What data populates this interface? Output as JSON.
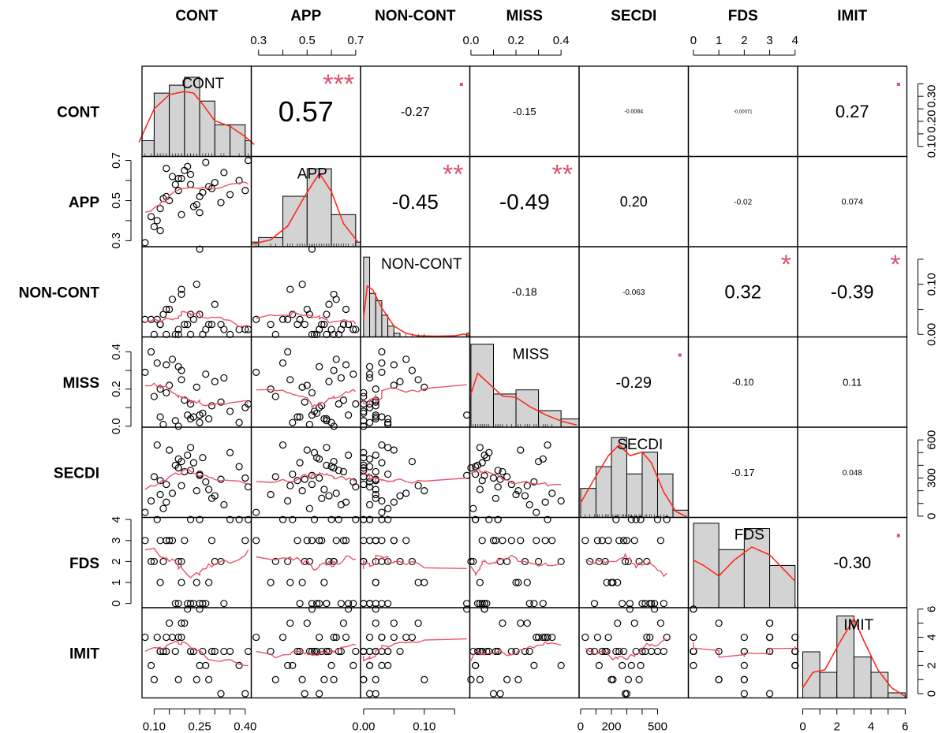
{
  "chart_data": {
    "type": "scatter-matrix",
    "variables": [
      "CONT",
      "APP",
      "NON-CONT",
      "MISS",
      "SECDI",
      "FDS",
      "IMIT"
    ],
    "ranges": [
      [
        0.06,
        0.42
      ],
      [
        0.27,
        0.72
      ],
      [
        -0.005,
        0.175
      ],
      [
        -0.005,
        0.48
      ],
      [
        -10,
        700
      ],
      [
        -0.2,
        4.1
      ],
      [
        -0.3,
        6.1
      ]
    ],
    "top_axis": [
      null,
      {
        "ticks": [
          0.3,
          0.4,
          0.5,
          0.6,
          0.7
        ],
        "labels": [
          "0.3",
          "0.5",
          "0.7"
        ],
        "label_at": [
          0.3,
          0.5,
          0.7
        ]
      },
      null,
      {
        "ticks": [
          0.0,
          0.1,
          0.2,
          0.3,
          0.4
        ],
        "labels": [
          "0.0",
          "0.2",
          "0.4"
        ],
        "label_at": [
          0.0,
          0.2,
          0.4
        ]
      },
      null,
      {
        "ticks": [
          0,
          1,
          2,
          3,
          4
        ],
        "labels": [
          "0",
          "1",
          "2",
          "3",
          "4"
        ],
        "label_at": [
          0,
          1,
          2,
          3,
          4
        ]
      },
      null
    ],
    "bottom_axis": [
      {
        "ticks": [
          0.1,
          0.15,
          0.2,
          0.25,
          0.3,
          0.35,
          0.4
        ],
        "labels": [
          "0.10",
          "0.25",
          "0.40"
        ],
        "label_at": [
          0.1,
          0.25,
          0.4
        ]
      },
      null,
      {
        "ticks": [
          0.0,
          0.05,
          0.1,
          0.15
        ],
        "labels": [
          "0.00",
          "0.10"
        ],
        "label_at": [
          0.0,
          0.1
        ]
      },
      null,
      {
        "ticks": [
          0,
          100,
          200,
          300,
          400,
          500
        ],
        "labels": [
          "0",
          "200",
          "500"
        ],
        "label_at": [
          0,
          200,
          500
        ]
      },
      null,
      {
        "ticks": [
          0,
          1,
          2,
          3,
          4,
          5,
          6
        ],
        "labels": [
          "0",
          "2",
          "4",
          "6"
        ],
        "label_at": [
          0,
          2,
          4,
          6
        ]
      }
    ],
    "left_axis": [
      null,
      {
        "ticks": [
          0.3,
          0.4,
          0.5,
          0.6,
          0.7
        ],
        "labels": [
          "0.3",
          "0.5",
          "0.7"
        ],
        "label_at": [
          0.3,
          0.5,
          0.7
        ]
      },
      null,
      {
        "ticks": [
          0.0,
          0.1,
          0.2,
          0.3,
          0.4
        ],
        "labels": [
          "0.0",
          "0.2",
          "0.4"
        ],
        "label_at": [
          0.0,
          0.2,
          0.4
        ]
      },
      null,
      {
        "ticks": [
          0,
          1,
          2,
          3,
          4
        ],
        "labels": [
          "0",
          "1",
          "2",
          "3",
          "4"
        ],
        "label_at": [
          0,
          1,
          2,
          3,
          4
        ]
      },
      null
    ],
    "right_axis": [
      {
        "ticks": [
          0.1,
          0.15,
          0.2,
          0.25,
          0.3,
          0.35
        ],
        "labels": [
          "0.10",
          "0.20",
          "0.30"
        ],
        "label_at": [
          0.1,
          0.2,
          0.3
        ]
      },
      null,
      {
        "ticks": [
          0.0,
          0.05,
          0.1,
          0.15
        ],
        "labels": [
          "0.00",
          "0.10"
        ],
        "label_at": [
          0.0,
          0.1
        ]
      },
      null,
      {
        "ticks": [
          0,
          100,
          200,
          300,
          400,
          500,
          600
        ],
        "labels": [
          "0",
          "300",
          "600"
        ],
        "label_at": [
          0,
          300,
          600
        ]
      },
      null,
      {
        "ticks": [
          0,
          1,
          2,
          3,
          4,
          5,
          6
        ],
        "labels": [
          "0",
          "2",
          "4",
          "6"
        ],
        "label_at": [
          0,
          2,
          4,
          6
        ]
      }
    ],
    "correlations": [
      {
        "row": 0,
        "col": 1,
        "text": "0.57",
        "stars": "***",
        "size": 36
      },
      {
        "row": 0,
        "col": 2,
        "text": "-0.27",
        "stars": "▪",
        "size": 16
      },
      {
        "row": 0,
        "col": 3,
        "text": "-0.15",
        "stars": "",
        "size": 13
      },
      {
        "row": 0,
        "col": 4,
        "text": "-0.0084",
        "stars": "",
        "size": 7
      },
      {
        "row": 0,
        "col": 5,
        "text": "-0.00071",
        "stars": "",
        "size": 6
      },
      {
        "row": 0,
        "col": 6,
        "text": "0.27",
        "stars": "▪",
        "size": 22
      },
      {
        "row": 1,
        "col": 2,
        "text": "-0.45",
        "stars": "**",
        "size": 26
      },
      {
        "row": 1,
        "col": 3,
        "text": "-0.49",
        "stars": "**",
        "size": 28
      },
      {
        "row": 1,
        "col": 4,
        "text": "0.20",
        "stars": "",
        "size": 18
      },
      {
        "row": 1,
        "col": 5,
        "text": "-0.02",
        "stars": "",
        "size": 10
      },
      {
        "row": 1,
        "col": 6,
        "text": "0.074",
        "stars": "",
        "size": 11
      },
      {
        "row": 2,
        "col": 3,
        "text": "-0.18",
        "stars": "",
        "size": 14
      },
      {
        "row": 2,
        "col": 4,
        "text": "-0.063",
        "stars": "",
        "size": 10
      },
      {
        "row": 2,
        "col": 5,
        "text": "0.32",
        "stars": "*",
        "size": 24
      },
      {
        "row": 2,
        "col": 6,
        "text": "-0.39",
        "stars": "*",
        "size": 24
      },
      {
        "row": 3,
        "col": 4,
        "text": "-0.29",
        "stars": "▪",
        "size": 20
      },
      {
        "row": 3,
        "col": 5,
        "text": "-0.10",
        "stars": "",
        "size": 12
      },
      {
        "row": 3,
        "col": 6,
        "text": "0.11",
        "stars": "",
        "size": 13
      },
      {
        "row": 4,
        "col": 5,
        "text": "-0.17",
        "stars": "",
        "size": 13
      },
      {
        "row": 4,
        "col": 6,
        "text": "0.048",
        "stars": "",
        "size": 10
      },
      {
        "row": 5,
        "col": 6,
        "text": "-0.30",
        "stars": "▪",
        "size": 21
      }
    ],
    "histograms": [
      {
        "breaks": [
          0.05,
          0.1,
          0.15,
          0.2,
          0.25,
          0.3,
          0.35,
          0.4,
          0.45
        ],
        "counts": [
          2,
          8,
          9,
          10,
          7,
          4,
          4,
          2
        ],
        "ymax": 11,
        "density": [
          [
            0.05,
            1.8
          ],
          [
            0.1,
            6.0
          ],
          [
            0.15,
            7.8
          ],
          [
            0.2,
            8.2
          ],
          [
            0.23,
            8.0
          ],
          [
            0.26,
            6.6
          ],
          [
            0.3,
            4.5
          ],
          [
            0.35,
            3.8
          ],
          [
            0.4,
            2.5
          ],
          [
            0.43,
            1.5
          ]
        ]
      },
      {
        "breaks": [
          0.2,
          0.3,
          0.4,
          0.5,
          0.6,
          0.7,
          0.8
        ],
        "counts": [
          1,
          2,
          11,
          17,
          7,
          1
        ],
        "ymax": 19,
        "density": [
          [
            0.27,
            0.5
          ],
          [
            0.35,
            1.5
          ],
          [
            0.42,
            4.5
          ],
          [
            0.49,
            11
          ],
          [
            0.55,
            16
          ],
          [
            0.6,
            12
          ],
          [
            0.65,
            5
          ],
          [
            0.71,
            1
          ]
        ]
      },
      {
        "breaks": [
          0.0,
          0.01,
          0.02,
          0.03,
          0.04,
          0.05,
          0.06,
          0.07,
          0.08,
          0.09,
          0.1,
          0.11,
          0.12,
          0.13,
          0.14,
          0.15,
          0.16,
          0.17,
          0.18
        ],
        "counts": [
          22,
          12,
          10,
          6,
          3,
          1,
          0,
          0,
          0,
          0,
          0,
          0,
          0,
          0,
          0,
          0,
          0,
          1
        ],
        "ymax": 24,
        "density": [
          [
            0.0,
            5
          ],
          [
            0.006,
            14
          ],
          [
            0.015,
            13
          ],
          [
            0.03,
            8
          ],
          [
            0.05,
            3
          ],
          [
            0.07,
            1
          ],
          [
            0.09,
            0.3
          ],
          [
            0.12,
            0.2
          ],
          [
            0.15,
            0.3
          ],
          [
            0.165,
            0.8
          ],
          [
            0.175,
            0.3
          ]
        ]
      },
      {
        "breaks": [
          0.0,
          0.1,
          0.2,
          0.3,
          0.4,
          0.5
        ],
        "counts": [
          20,
          8,
          9,
          4,
          2
        ],
        "ymax": 21,
        "density": [
          [
            0.0,
            8
          ],
          [
            0.03,
            13
          ],
          [
            0.07,
            11
          ],
          [
            0.14,
            7.5
          ],
          [
            0.2,
            7.2
          ],
          [
            0.26,
            5
          ],
          [
            0.33,
            3
          ],
          [
            0.4,
            1.5
          ],
          [
            0.47,
            0.5
          ]
        ]
      },
      {
        "breaks": [
          0,
          100,
          200,
          300,
          400,
          500,
          600,
          700
        ],
        "counts": [
          4,
          7,
          11,
          6,
          9,
          6,
          1
        ],
        "ymax": 12,
        "density": [
          [
            0,
            2
          ],
          [
            80,
            5
          ],
          [
            180,
            8.5
          ],
          [
            250,
            10
          ],
          [
            320,
            8.5
          ],
          [
            400,
            9
          ],
          [
            460,
            7.5
          ],
          [
            540,
            3.5
          ],
          [
            620,
            0.8
          ],
          [
            690,
            0.1
          ]
        ]
      },
      {
        "breaks": [
          0,
          1,
          2,
          3,
          4
        ],
        "counts": [
          16,
          11,
          15,
          8
        ],
        "ymax": 16.5,
        "density": [
          [
            0,
            9
          ],
          [
            0.4,
            8
          ],
          [
            1.0,
            6
          ],
          [
            1.6,
            9
          ],
          [
            2.3,
            11.5
          ],
          [
            3.0,
            10
          ],
          [
            3.6,
            7
          ],
          [
            4.0,
            5
          ]
        ]
      },
      {
        "breaks": [
          0,
          1,
          2,
          3,
          4,
          5,
          6
        ],
        "counts": [
          9,
          5,
          16,
          8,
          5,
          1
        ],
        "ymax": 17,
        "density": [
          [
            0,
            2
          ],
          [
            0.6,
            5
          ],
          [
            1.3,
            5.5
          ],
          [
            2.2,
            11
          ],
          [
            3.0,
            15.5
          ],
          [
            3.6,
            11
          ],
          [
            4.4,
            5.5
          ],
          [
            5.2,
            2
          ],
          [
            6.0,
            0.3
          ]
        ]
      }
    ],
    "scatter": {
      "CONT": [
        0.12,
        0.18,
        0.09,
        0.22,
        0.15,
        0.28,
        0.33,
        0.19,
        0.25,
        0.14,
        0.21,
        0.3,
        0.4,
        0.11,
        0.17,
        0.24,
        0.2,
        0.13,
        0.27,
        0.35,
        0.16,
        0.23,
        0.1,
        0.29,
        0.38,
        0.19,
        0.26,
        0.14,
        0.32,
        0.22,
        0.07,
        0.41,
        0.18,
        0.25,
        0.12
      ],
      "APP": [
        0.46,
        0.55,
        0.42,
        0.63,
        0.5,
        0.57,
        0.64,
        0.61,
        0.44,
        0.52,
        0.67,
        0.59,
        0.55,
        0.4,
        0.58,
        0.48,
        0.65,
        0.51,
        0.69,
        0.53,
        0.62,
        0.47,
        0.37,
        0.56,
        0.6,
        0.43,
        0.54,
        0.66,
        0.49,
        0.58,
        0.29,
        0.7,
        0.61,
        0.52,
        0.35
      ],
      "NON-CONT": [
        0.02,
        0.01,
        0.03,
        0.0,
        0.05,
        0.02,
        0.01,
        0.08,
        0.04,
        0.0,
        0.02,
        0.06,
        0.01,
        0.03,
        0.0,
        0.1,
        0.02,
        0.04,
        0.01,
        0.0,
        0.07,
        0.03,
        0.0,
        0.02,
        0.01,
        0.09,
        0.0,
        0.05,
        0.02,
        0.04,
        0.03,
        0.01,
        0.0,
        0.17,
        0.02
      ],
      "MISS": [
        0.05,
        0.32,
        0.4,
        0.12,
        0.22,
        0.04,
        0.26,
        0.3,
        0.02,
        0.18,
        0.06,
        0.24,
        0.1,
        0.34,
        0.03,
        0.21,
        0.14,
        0.01,
        0.28,
        0.08,
        0.36,
        0.05,
        0.16,
        0.11,
        0.02,
        0.25,
        0.07,
        0.33,
        0.13,
        0.04,
        0.29,
        0.12,
        0.0,
        0.06,
        0.2
      ],
      "SECDI": [
        280,
        450,
        120,
        360,
        520,
        210,
        90,
        430,
        330,
        250,
        480,
        160,
        300,
        560,
        400,
        200,
        350,
        60,
        270,
        500,
        180,
        420,
        310,
        140,
        390,
        240,
        460,
        110,
        290,
        540,
        30,
        230,
        380,
        320,
        170
      ],
      "FDS": [
        3,
        0,
        2,
        4,
        3,
        1,
        0,
        2,
        4,
        3,
        0,
        2,
        3,
        4,
        0,
        1,
        3,
        2,
        0,
        4,
        3,
        0,
        2,
        3,
        4,
        1,
        0,
        3,
        2,
        0,
        3,
        4,
        2,
        0,
        1
      ],
      "IMIT": [
        3,
        4,
        2,
        3,
        5,
        1,
        3,
        4,
        2,
        3,
        6,
        3,
        0,
        4,
        3,
        1,
        5,
        3,
        2,
        3,
        4,
        3,
        1,
        3,
        2,
        5,
        3,
        4,
        0,
        3,
        4,
        3,
        1,
        6,
        3
      ]
    }
  }
}
